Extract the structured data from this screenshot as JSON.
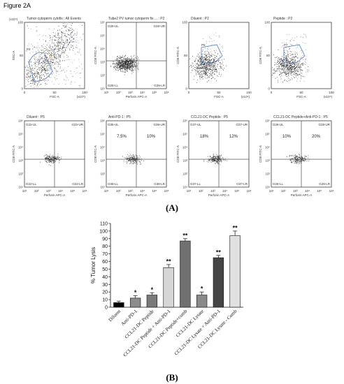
{
  "figure_title": "Figure 2A",
  "panel_labels": {
    "a": "(A)",
    "b": "(B)"
  },
  "flow_panels": [
    {
      "title": "Tumor cytoperm cytofix : All Events",
      "xlabel": "FSC-A",
      "ylabel": "SSC-A",
      "xunit": "(x10⁴)",
      "yunit": "(x10⁴)",
      "gate": "P3",
      "quadrants": [],
      "percents": [],
      "kind": "fsc_ssc_all"
    },
    {
      "title": "Tube2 PV tumor cytoperm fix ... : P2",
      "xlabel": "Perforin APC-A",
      "ylabel": "CD8 FITC-A",
      "xunit": "",
      "yunit": "",
      "gate": "",
      "quadrants": [
        "G28-UL",
        "G28-UR",
        "G28-LL",
        "G28-LR"
      ],
      "percents": [],
      "kind": "quad"
    },
    {
      "title": "Diluent : P2",
      "xlabel": "FSC-A",
      "ylabel": "CD8 FITC-A",
      "xunit": "(x10⁴)",
      "yunit": "",
      "gate": "P5",
      "quadrants": [],
      "percents": [],
      "kind": "fsc_gate"
    },
    {
      "title": "Peptide : P2",
      "xlabel": "FSC-A",
      "ylabel": "CD8 FITC-A",
      "xunit": "(x10⁴)",
      "yunit": "",
      "gate": "P7",
      "quadrants": [],
      "percents": [],
      "kind": "fsc_gate"
    },
    {
      "title": "Diluent : P5",
      "xlabel": "Perforin APC-A",
      "ylabel": "CD8 FITC-A",
      "xunit": "",
      "yunit": "",
      "gate": "",
      "quadrants": [
        "G22-UL",
        "G22-UR",
        "G22-LL",
        "G22-LR"
      ],
      "percents": [],
      "kind": "quad"
    },
    {
      "title": "Anti-PD-1 : P5",
      "xlabel": "Perforin APC-A",
      "ylabel": "CD8 FITC-A",
      "xunit": "",
      "yunit": "",
      "gate": "",
      "quadrants": [
        "G38-UL",
        "G38-UR",
        "G38-LL",
        "G38-LR"
      ],
      "percents": [
        "7.5%",
        "10%"
      ],
      "kind": "quad"
    },
    {
      "title": "CCL21-DC Peptide : P5",
      "xlabel": "Perforin APC-A",
      "ylabel": "CD8 FITC-A",
      "xunit": "",
      "yunit": "",
      "gate": "",
      "quadrants": [
        "G37-UL",
        "G37-UR",
        "G37-LL",
        "G37-LR"
      ],
      "percents": [
        "18%",
        "12%"
      ],
      "kind": "quad"
    },
    {
      "title": "CCL21-DC Peptide+Anti-PD-1 : P5",
      "xlabel": "Perforin APC-A",
      "ylabel": "CD8 FITC-A",
      "xunit": "",
      "yunit": "",
      "gate": "",
      "quadrants": [
        "G28-UL",
        "G28-UR",
        "G28-LL",
        "G28-LR"
      ],
      "percents": [
        "10%",
        "20%"
      ],
      "kind": "quad"
    }
  ],
  "lin_ticks": [
    "0",
    "50",
    "100"
  ],
  "log_ticks": [
    "10¹",
    "10²",
    "10³",
    "10⁴",
    "10⁵",
    "10⁶"
  ],
  "chart_data": {
    "type": "bar",
    "title": "",
    "xlabel": "",
    "ylabel": "% Tumor Lysis",
    "ylim": [
      0,
      110
    ],
    "yticks": [
      0,
      10,
      20,
      30,
      40,
      50,
      60,
      70,
      80,
      90,
      100,
      110
    ],
    "grid": false,
    "categories": [
      "Diluent",
      "Anti-PD-1",
      "CCL21-DC Peptide",
      "CCL21-DC Peptide + Anti-PD-1",
      "CCL21-DC Peptide+comb",
      "CCL21-DC Lysate",
      "CCL21-DC Lysate + Anti-PD-1",
      "CCL21-DC Lysate - Comb"
    ],
    "values": [
      6,
      12,
      16,
      52,
      87,
      16,
      65,
      94
    ],
    "errors": [
      2,
      3,
      3,
      4,
      3,
      4,
      3,
      6
    ],
    "significance": [
      "",
      "*",
      "*",
      "**",
      "**",
      "*",
      "**",
      "**"
    ],
    "bar_colors": [
      "#000000",
      "#8c8c8c",
      "#7a7a7a",
      "#d6d6d6",
      "#707070",
      "#8a8a8a",
      "#454545",
      "#e0e0e0"
    ]
  }
}
